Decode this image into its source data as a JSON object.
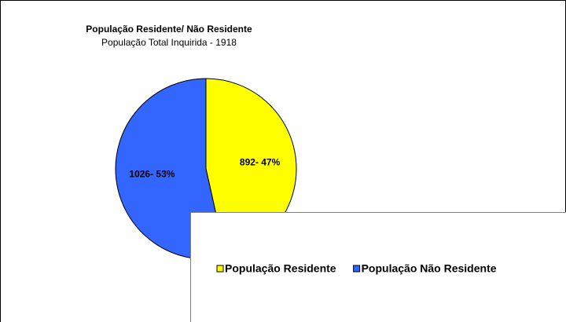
{
  "chart_data": {
    "type": "pie",
    "title": "População Residente/ Não Residente",
    "subtitle": "População Total Inquirida - 1918",
    "categories": [
      "População Residente",
      "População Não Residente"
    ],
    "values": [
      892,
      1026
    ],
    "value_labels": [
      "892- 47%",
      "1026- 53%"
    ],
    "colors": [
      "#ffff00",
      "#3366ff"
    ],
    "legend": "bottom"
  }
}
